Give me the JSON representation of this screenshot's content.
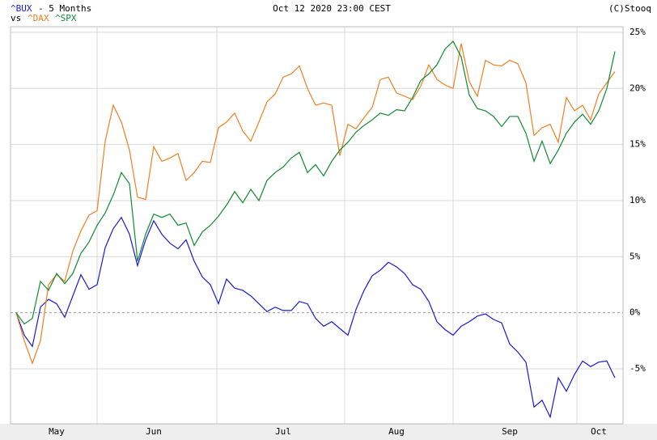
{
  "chart_data": {
    "type": "line",
    "title": "Oct 12 2020 23:00 CEST",
    "subtitle": "- 5 Months",
    "legend_prefix": "vs",
    "credit": "(C)Stooq",
    "categories": [
      null,
      null,
      null,
      null,
      null,
      "May",
      null,
      null,
      null,
      null,
      null,
      null,
      null,
      null,
      null,
      null,
      null,
      "Jun",
      null,
      null,
      null,
      null,
      null,
      null,
      null,
      null,
      null,
      null,
      null,
      null,
      null,
      null,
      null,
      "Jul",
      null,
      null,
      null,
      null,
      null,
      null,
      null,
      null,
      null,
      null,
      null,
      null,
      null,
      "Aug",
      null,
      null,
      null,
      null,
      null,
      null,
      null,
      null,
      null,
      null,
      null,
      null,
      null,
      "Sep",
      null,
      null,
      null,
      null,
      null,
      null,
      null,
      null,
      null,
      null,
      "Oct",
      null,
      null
    ],
    "series": [
      {
        "name": "^BUX",
        "color": "#1a1ad0",
        "values": [
          0,
          -2,
          -3,
          0.5,
          1.2,
          0.8,
          -0.4,
          1.5,
          3.4,
          2.1,
          2.5,
          5.8,
          7.5,
          8.5,
          7,
          4.2,
          6.5,
          8.2,
          7,
          6.2,
          5.7,
          6.5,
          4.6,
          3.2,
          2.5,
          0.8,
          3,
          2.2,
          2,
          1.5,
          0.8,
          0.1,
          0.5,
          0.2,
          0.2,
          1,
          0.8,
          -0.5,
          -1.2,
          -0.8,
          -1.4,
          -2,
          0.3,
          2,
          3.3,
          3.8,
          4.5,
          4.1,
          3.5,
          2.5,
          2.1,
          1,
          -0.8,
          -1.5,
          -2,
          -1.2,
          -0.8,
          -0.3,
          -0.1,
          -0.6,
          -0.9,
          -2.8,
          -3.5,
          -4.4,
          -8.4,
          -7.8,
          -9.3,
          -5.8,
          -7,
          -5.5,
          -4.3,
          -4.8,
          -4.4,
          -4.3,
          -5.8
        ]
      },
      {
        "name": "^DAX",
        "color": "#f07f20",
        "values": [
          0,
          -2.5,
          -4.5,
          -2.5,
          2.5,
          3.4,
          2.8,
          5.5,
          7.3,
          8.7,
          9.1,
          15.3,
          18.5,
          17,
          14.5,
          10.3,
          10.1,
          14.8,
          13.5,
          13.8,
          14.2,
          11.8,
          12.5,
          13.5,
          13.4,
          16.5,
          17,
          17.8,
          16.2,
          15.3,
          17,
          18.8,
          19.5,
          21,
          21.3,
          22,
          20,
          18.5,
          18.7,
          18.5,
          14,
          16.8,
          16.4,
          17.4,
          18.3,
          20.8,
          21,
          19.6,
          19.3,
          19,
          20.2,
          22.1,
          20.8,
          20.3,
          20,
          24,
          20.6,
          19.3,
          22.5,
          22.1,
          22,
          22.5,
          22.2,
          20.5,
          15.8,
          16.5,
          16.8,
          15.2,
          19.2,
          18,
          18.5,
          17.2,
          19.5,
          20.5,
          21.5
        ]
      },
      {
        "name": "^SPX",
        "color": "#108a30",
        "values": [
          0,
          -1,
          -0.5,
          2.8,
          2,
          3.5,
          2.6,
          3.5,
          5.3,
          6.3,
          7.8,
          8.9,
          10.5,
          12.5,
          11.5,
          4.6,
          7,
          8.8,
          8.5,
          8.8,
          7.8,
          8,
          6,
          7.2,
          7.8,
          8.6,
          9.6,
          10.8,
          9.8,
          11,
          10,
          11.8,
          12.5,
          13,
          13.8,
          14.3,
          12.5,
          13.2,
          12.2,
          13.5,
          14.5,
          15.2,
          16.1,
          16.7,
          17.2,
          17.8,
          17.6,
          18.1,
          18,
          19.2,
          20.7,
          21.3,
          22.1,
          23.5,
          24.2,
          22.8,
          19.4,
          18.2,
          18,
          17.5,
          16.6,
          17.5,
          17.5,
          16,
          13.5,
          15.3,
          13.3,
          14.5,
          16,
          17,
          17.7,
          16.8,
          18,
          20,
          23.3
        ]
      }
    ],
    "ylim": [
      -9.9,
      25.5
    ],
    "yticks": [
      {
        "value": -5,
        "label": "-5%"
      },
      {
        "value": 0,
        "label": "0%"
      },
      {
        "value": 5,
        "label": "5%"
      },
      {
        "value": 10,
        "label": "10%"
      },
      {
        "value": 15,
        "label": "15%"
      },
      {
        "value": 20,
        "label": "20%"
      },
      {
        "value": 25,
        "label": "25%"
      }
    ],
    "grid": true
  }
}
